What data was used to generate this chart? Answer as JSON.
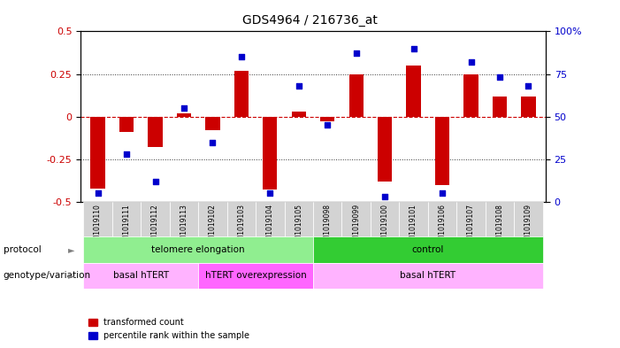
{
  "title": "GDS4964 / 216736_at",
  "samples": [
    "GSM1019110",
    "GSM1019111",
    "GSM1019112",
    "GSM1019113",
    "GSM1019102",
    "GSM1019103",
    "GSM1019104",
    "GSM1019105",
    "GSM1019098",
    "GSM1019099",
    "GSM1019100",
    "GSM1019101",
    "GSM1019106",
    "GSM1019107",
    "GSM1019108",
    "GSM1019109"
  ],
  "transformed_count": [
    -0.42,
    -0.09,
    -0.18,
    0.02,
    -0.08,
    0.27,
    -0.43,
    0.03,
    -0.03,
    0.25,
    -0.38,
    0.3,
    -0.4,
    0.25,
    0.12,
    0.12
  ],
  "percentile_rank": [
    5,
    28,
    12,
    55,
    35,
    85,
    5,
    68,
    45,
    87,
    3,
    90,
    5,
    82,
    73,
    68
  ],
  "protocol_groups": [
    {
      "label": "telomere elongation",
      "start": 0,
      "end": 8,
      "color": "#90ee90"
    },
    {
      "label": "control",
      "start": 8,
      "end": 16,
      "color": "#33cc33"
    }
  ],
  "genotype_groups": [
    {
      "label": "basal hTERT",
      "start": 0,
      "end": 4,
      "color": "#ffb3ff"
    },
    {
      "label": "hTERT overexpression",
      "start": 4,
      "end": 8,
      "color": "#ff66ff"
    },
    {
      "label": "basal hTERT",
      "start": 8,
      "end": 16,
      "color": "#ffb3ff"
    }
  ],
  "bar_color": "#cc0000",
  "dot_color": "#0000cc",
  "ylim": [
    -0.5,
    0.5
  ],
  "y2lim": [
    0,
    100
  ],
  "yticks": [
    -0.5,
    -0.25,
    0,
    0.25,
    0.5
  ],
  "y2ticks": [
    0,
    25,
    50,
    75,
    100
  ],
  "hline_color": "#cc0000",
  "dotted_color": "#333333",
  "background_color": "#ffffff",
  "plot_bg": "#ffffff",
  "bar_width": 0.5
}
